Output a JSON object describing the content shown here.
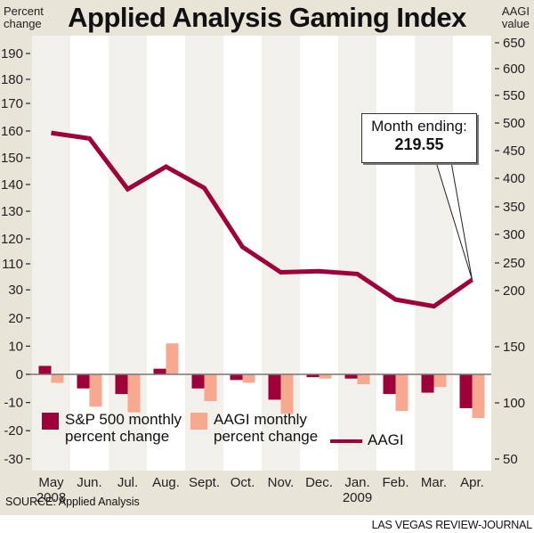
{
  "title": "Applied Analysis Gaming Index",
  "left_axis_header": [
    "Percent",
    "change"
  ],
  "right_axis_header": [
    "AAGI",
    "value"
  ],
  "source": "SOURCE: Applied Analysis",
  "credit": "LAS VEGAS REVIEW-JOURNAL",
  "callout": {
    "line1": "Month ending:",
    "line2": "219.55"
  },
  "colors": {
    "sp500": "#9e0039",
    "aagi_bar": "#f7a98f",
    "aagi_line": "#9e0039",
    "panel": "#e8e4d8",
    "band": "#f2f0eb"
  },
  "chart_data": {
    "type": "bar+line",
    "title": "Applied Analysis Gaming Index",
    "categories": [
      "May",
      "Jun.",
      "Jul.",
      "Aug.",
      "Sept.",
      "Oct.",
      "Nov.",
      "Dec.",
      "Jan.",
      "Feb.",
      "Mar.",
      "Apr."
    ],
    "category_sublabels": [
      "2008",
      "",
      "",
      "",
      "",
      "",
      "",
      "",
      "2009",
      "",
      "",
      ""
    ],
    "left_axis": {
      "label": "Percent change",
      "ticks": [
        190,
        180,
        170,
        160,
        150,
        140,
        130,
        120,
        110,
        30,
        20,
        10,
        0,
        -10,
        -20,
        -30
      ],
      "note": "broken axis between 110 and 30",
      "ylim": [
        -30,
        190
      ]
    },
    "right_axis": {
      "label": "AAGI value",
      "ticks": [
        650,
        600,
        550,
        500,
        450,
        400,
        350,
        300,
        250,
        200,
        150,
        100,
        50
      ],
      "ylim": [
        50,
        650
      ]
    },
    "series": [
      {
        "name": "S&P 500 monthly percent change",
        "type": "bar",
        "axis": "left",
        "values": [
          3,
          -5,
          -7,
          2,
          -5,
          -2,
          -9,
          -1,
          -1.5,
          -7,
          -6.5,
          -12
        ]
      },
      {
        "name": "AAGI monthly percent change",
        "type": "bar",
        "axis": "left",
        "values": [
          -3,
          -11.5,
          -13.5,
          11,
          -9.5,
          -3,
          -14,
          -1.5,
          -3.5,
          -13,
          -4.5,
          -15.5
        ]
      },
      {
        "name": "AAGI",
        "type": "line",
        "axis": "right",
        "values": [
          482,
          472,
          381,
          421,
          383,
          278,
          233,
          235,
          230,
          192,
          186,
          219.55
        ]
      }
    ],
    "annotations": [
      {
        "text": "Month ending: 219.55",
        "points_to": "Apr."
      }
    ],
    "legend": [
      "S&P 500 monthly percent change",
      "AAGI monthly percent change",
      "AAGI"
    ],
    "legend_placement": "bottom"
  }
}
